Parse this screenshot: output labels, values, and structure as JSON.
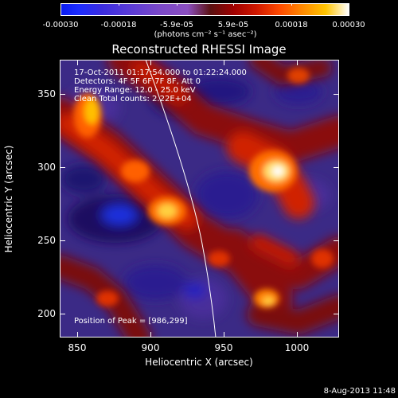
{
  "colorbar": {
    "tick_labels": [
      "-0.00030",
      "-0.00018",
      "-5.9e-05",
      "5.9e-05",
      "0.00018",
      "0.00030"
    ],
    "units": "(photons cm⁻² s⁻¹ asec⁻²)"
  },
  "title": "Reconstructed RHESSI Image",
  "info_lines": [
    "17-Oct-2011 01:17:54.000 to 01:22:24.000",
    "Detectors: 4F 5F 6F 7F 8F, Att 0",
    "Energy Range: 12.0 - 25.0 keV",
    "Clean    Total counts: 2.22E+04"
  ],
  "peak": "Position of Peak = [986,299]",
  "axes": {
    "x_title": "Heliocentric X (arcsec)",
    "y_title": "Heliocentric Y (arcsec)",
    "x_ticks": [
      "850",
      "900",
      "950",
      "1000"
    ],
    "y_ticks": [
      "350",
      "300",
      "250",
      "200"
    ]
  },
  "datestamp": "8-Aug-2013 11:48",
  "colors": {
    "background": "#000000",
    "low": "#1c2cff",
    "mid": "#7a48c8",
    "high": "#ffffff",
    "limb_line": "#ffffff"
  }
}
